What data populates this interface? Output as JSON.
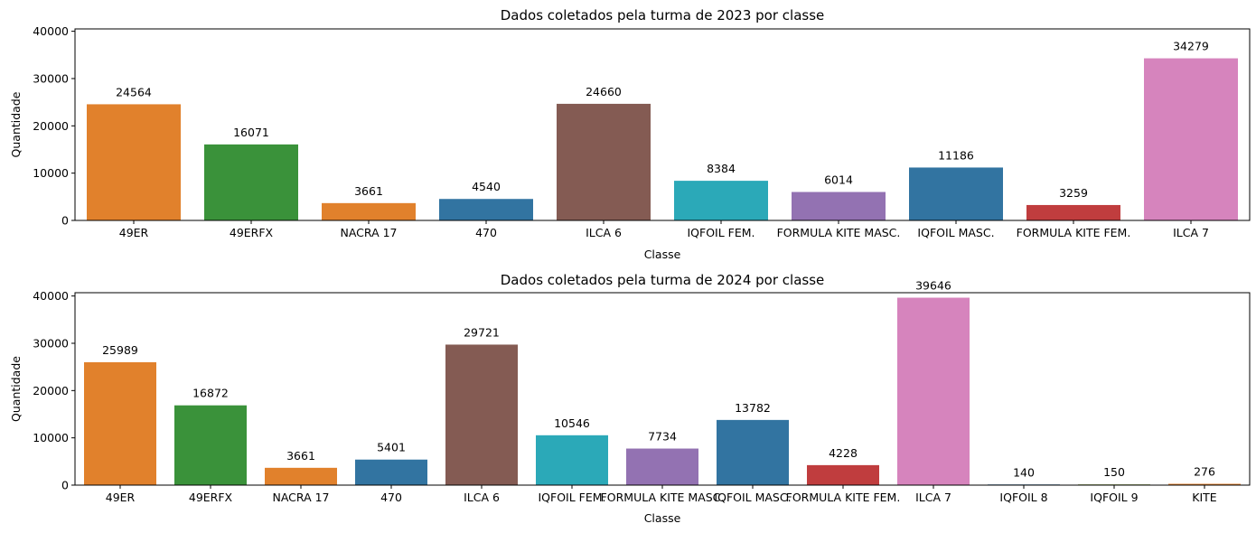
{
  "chart_data": [
    {
      "type": "bar",
      "title": "Dados coletados pela turma de 2023 por classe",
      "xlabel": "Classe",
      "ylabel": "Quantidade",
      "ylim": [
        0,
        40500
      ],
      "yticks": [
        0,
        10000,
        20000,
        30000,
        40000
      ],
      "grid": false,
      "categories": [
        "49ER",
        "49ERFX",
        "NACRA 17",
        "470",
        "ILCA 6",
        "IQFOIL FEM.",
        "FORMULA KITE MASC.",
        "IQFOIL MASC.",
        "FORMULA KITE FEM.",
        "ILCA 7"
      ],
      "values": [
        24564,
        16071,
        3661,
        4540,
        24660,
        8384,
        6014,
        11186,
        3259,
        34279
      ],
      "colors": [
        "#e1812c",
        "#3a923a",
        "#e1812c",
        "#3274a1",
        "#845b53",
        "#2ba9b8",
        "#9372b2",
        "#3274a1",
        "#c03d3e",
        "#d684bd"
      ]
    },
    {
      "type": "bar",
      "title": "Dados coletados pela turma de 2024 por classe",
      "xlabel": "Classe",
      "ylabel": "Quantidade",
      "ylim": [
        0,
        40700
      ],
      "yticks": [
        0,
        10000,
        20000,
        30000,
        40000
      ],
      "grid": false,
      "categories": [
        "49ER",
        "49ERFX",
        "NACRA 17",
        "470",
        "ILCA 6",
        "IQFOIL FEM.",
        "FORMULA KITE MASC.",
        "IQFOIL MASC.",
        "FORMULA KITE FEM.",
        "ILCA 7",
        "IQFOIL 8",
        "IQFOIL 9",
        "KITE"
      ],
      "values": [
        25989,
        16872,
        3661,
        5401,
        29721,
        10546,
        7734,
        13782,
        4228,
        39646,
        140,
        150,
        276
      ],
      "colors": [
        "#e1812c",
        "#3a923a",
        "#e1812c",
        "#3274a1",
        "#845b53",
        "#2ba9b8",
        "#9372b2",
        "#3274a1",
        "#c03d3e",
        "#d684bd",
        "#3274a1",
        "#7f9a2e",
        "#e1812c"
      ]
    }
  ]
}
